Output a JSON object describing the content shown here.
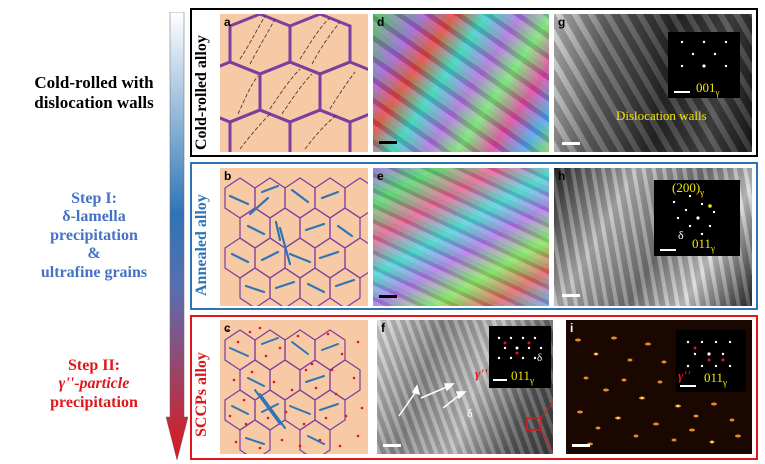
{
  "left": {
    "cold": {
      "line1": "Cold-rolled with",
      "line2": "dislocation walls"
    },
    "step1": {
      "line1": "Step I:",
      "line2": "δ-lamella",
      "line3": "precipitation",
      "line4": "&",
      "line5": "ultrafine grains"
    },
    "step2": {
      "line1": "Step II:",
      "line2": "γ''-particle",
      "line3": "precipitation"
    }
  },
  "rows": [
    {
      "label": "Cold-rolled alloy",
      "color": "#000000"
    },
    {
      "label": "Annealed alloy",
      "color": "#2e75b6"
    },
    {
      "label": "SCCPs alloy",
      "color": "#e0161b"
    }
  ],
  "panels": {
    "a": "a",
    "b": "b",
    "c": "c",
    "d": "d",
    "e": "e",
    "f": "f",
    "g": "g",
    "h": "h",
    "i": "i"
  },
  "annotations": {
    "g_zone": "001",
    "g_zone_sub": "γ",
    "g_text": "Dislocation walls",
    "h_spot": "(200)",
    "h_spot_sub": "γ",
    "h_delta": "δ",
    "h_zone": "011",
    "h_zone_sub": "γ",
    "f_gamma": "γ''",
    "f_delta_spot": "δ",
    "f_zone": "011",
    "f_zone_sub": "γ",
    "f_delta": "δ",
    "i_gamma": "γ''",
    "i_zone": "011",
    "i_zone_sub": "γ"
  },
  "colors": {
    "arrow_top": "#ffffff",
    "arrow_mid": "#2e75b6",
    "arrow_bottom": "#e0161b",
    "schematic_fill": "#f7c9a4",
    "grain_purple": "#7b3fa0",
    "lamella_blue": "#2e75b6",
    "particle_red": "#e0161b"
  }
}
